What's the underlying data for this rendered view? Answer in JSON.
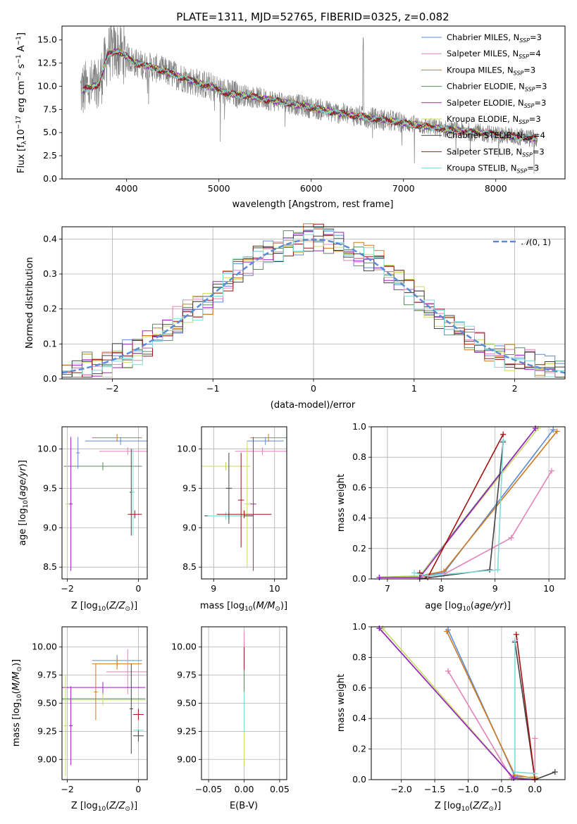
{
  "colors": {
    "Chabrier MILES": "#5b8bd8",
    "Salpeter MILES": "#e382b8",
    "Kroupa MILES": "#cf7a1e",
    "Chabrier ELODIE": "#5e8a5e",
    "Salpeter ELODIE": "#9b22c3",
    "Kroupa ELODIE": "#c6dd62",
    "Chabrier STELIB": "#444444",
    "Salpeter STELIB": "#a31212",
    "Kroupa STELIB": "#7fdad9",
    "data": "#808080",
    "normal": "#5b8bd8"
  },
  "chart_data": [
    {
      "id": "spectrum",
      "type": "line",
      "title": "PLATE=1311, MJD=52765, FIBERID=0325, z=0.082",
      "xlabel": "wavelength [Angstrom, rest frame]",
      "ylabel": "Flux [f",
      "xlim": [
        3300,
        8750
      ],
      "ylim": [
        0,
        16.5
      ],
      "xticks": [
        4000,
        5000,
        6000,
        7000,
        8000
      ],
      "yticks": [
        0.0,
        2.5,
        5.0,
        7.5,
        10.0,
        12.5,
        15.0
      ],
      "legend": "top-right",
      "grid": false,
      "series": [
        {
          "name": "Chabrier MILES, N",
          "sub": "SSP",
          "tail": "=3"
        },
        {
          "name": "Salpeter MILES, N",
          "sub": "SSP",
          "tail": "=4"
        },
        {
          "name": "Kroupa MILES, N",
          "sub": "SSP",
          "tail": "=3"
        },
        {
          "name": "Chabrier ELODIE, N",
          "sub": "SSP",
          "tail": "=3"
        },
        {
          "name": "Salpeter ELODIE, N",
          "sub": "SSP",
          "tail": "=3"
        },
        {
          "name": "Kroupa ELODIE, N",
          "sub": "SSP",
          "tail": "=3"
        },
        {
          "name": "Chabrier STELIB, N",
          "sub": "SSP",
          "tail": "=4"
        },
        {
          "name": "Salpeter STELIB, N",
          "sub": "SSP",
          "tail": "=3"
        },
        {
          "name": "Kroupa STELIB, N",
          "sub": "SSP",
          "tail": "=3"
        }
      ],
      "continuum": [
        [
          3500,
          9.5
        ],
        [
          3700,
          10.2
        ],
        [
          3800,
          13.5
        ],
        [
          3900,
          13.8
        ],
        [
          4000,
          13.2
        ],
        [
          4100,
          12.5
        ],
        [
          4300,
          12.0
        ],
        [
          4500,
          11.3
        ],
        [
          4700,
          10.6
        ],
        [
          4900,
          10.0
        ],
        [
          5100,
          9.2
        ],
        [
          5300,
          9.0
        ],
        [
          5500,
          8.6
        ],
        [
          5700,
          8.3
        ],
        [
          5900,
          7.9
        ],
        [
          6100,
          7.5
        ],
        [
          6300,
          7.1
        ],
        [
          6500,
          6.8
        ],
        [
          6700,
          6.5
        ],
        [
          6900,
          6.2
        ],
        [
          7100,
          5.9
        ],
        [
          7300,
          5.6
        ],
        [
          7500,
          5.3
        ],
        [
          7700,
          5.1
        ],
        [
          7900,
          4.9
        ],
        [
          8100,
          4.7
        ],
        [
          8300,
          4.5
        ],
        [
          8450,
          4.3
        ]
      ]
    },
    {
      "id": "residuals",
      "type": "step",
      "xlabel": "(data-model)/error",
      "ylabel": "Normed distribution",
      "xlim": [
        -2.5,
        2.5
      ],
      "ylim": [
        0,
        0.435
      ],
      "xticks": [
        -2,
        -1,
        0,
        1,
        2
      ],
      "yticks": [
        0.0,
        0.1,
        0.2,
        0.3,
        0.4
      ],
      "grid": true,
      "legend": "top-right",
      "normal_label": "(0, 1)"
    },
    {
      "id": "z-age",
      "type": "errorbar",
      "xlabel": "Z [log",
      "ylabel": "age  [log",
      "xlim": [
        -2.15,
        0.25
      ],
      "ylim": [
        8.35,
        10.28
      ],
      "xticks": [
        -2,
        0
      ],
      "yticks": [
        8.5,
        9.0,
        9.5,
        10.0
      ],
      "grid": true,
      "points": [
        {
          "s": "Chabrier MILES",
          "x": -0.5,
          "xe": 1.0,
          "y": 10.1,
          "ye": 0.05
        },
        {
          "s": "Kroupa MILES",
          "x": -0.6,
          "xe": 0.7,
          "y": 10.14,
          "ye": 0.05
        },
        {
          "s": "Salpeter MILES",
          "x": -0.3,
          "xe": 0.8,
          "y": 9.97,
          "ye": 0.05
        },
        {
          "s": "Kroupa ELODIE",
          "x": -1.0,
          "xe": 1.1,
          "y": 9.78,
          "ye": 0.05
        },
        {
          "s": "Chabrier ELODIE",
          "x": -1.0,
          "xe": 1.1,
          "y": 9.78,
          "ye": 0.05
        },
        {
          "s": "Salpeter ELODIE",
          "x": -1.9,
          "xe": 0.05,
          "y": 9.3,
          "ye": 0.85
        },
        {
          "s": "Kroupa ELODIE",
          "x": -2.0,
          "xe": 0.05,
          "y": 9.3,
          "ye": 0.8
        },
        {
          "s": "Chabrier STELIB",
          "x": -0.2,
          "xe": 0.05,
          "y": 9.45,
          "ye": 0.55
        },
        {
          "s": "Kroupa STELIB",
          "x": -0.15,
          "xe": 0.05,
          "y": 9.45,
          "ye": 0.55
        },
        {
          "s": "Salpeter STELIB",
          "x": -0.1,
          "xe": 0.2,
          "y": 9.17,
          "ye": 0.05
        },
        {
          "s": "Chabrier MILES",
          "x": -1.7,
          "xe": 0.05,
          "y": 9.95,
          "ye": 0.2
        }
      ]
    },
    {
      "id": "mass-age",
      "type": "errorbar",
      "xlabel": "mass [log",
      "ylabel": "",
      "xlim": [
        8.8,
        10.2
      ],
      "ylim": [
        8.35,
        10.28
      ],
      "xticks": [
        9,
        10
      ],
      "yticks": [
        8.5,
        9.0,
        9.5,
        10.0
      ],
      "grid": true,
      "points": [
        {
          "s": "Chabrier MILES",
          "x": 9.85,
          "xe": 0.3,
          "y": 10.1,
          "ye": 0.05
        },
        {
          "s": "Kroupa MILES",
          "x": 9.9,
          "xe": 0.3,
          "y": 10.14,
          "ye": 0.05
        },
        {
          "s": "Salpeter MILES",
          "x": 9.8,
          "xe": 0.45,
          "y": 9.97,
          "ye": 0.05
        },
        {
          "s": "Chabrier ELODIE",
          "x": 9.2,
          "xe": 0.4,
          "y": 9.78,
          "ye": 0.05
        },
        {
          "s": "Kroupa ELODIE",
          "x": 9.2,
          "xe": 0.4,
          "y": 9.78,
          "ye": 0.05
        },
        {
          "s": "Salpeter ELODIE",
          "x": 9.65,
          "xe": 0.05,
          "y": 9.3,
          "ye": 0.85
        },
        {
          "s": "Kroupa ELODIE",
          "x": 9.55,
          "xe": 0.05,
          "y": 9.3,
          "ye": 0.8
        },
        {
          "s": "Chabrier STELIB",
          "x": 9.25,
          "xe": 0.4,
          "y": 9.15,
          "ye": 0.05
        },
        {
          "s": "Kroupa STELIB",
          "x": 9.2,
          "xe": 0.3,
          "y": 9.15,
          "ye": 0.05
        },
        {
          "s": "Salpeter STELIB",
          "x": 9.5,
          "xe": 0.45,
          "y": 9.17,
          "ye": 0.05
        },
        {
          "s": "Chabrier STELIB",
          "x": 9.25,
          "xe": 0.05,
          "y": 9.5,
          "ye": 0.45
        },
        {
          "s": "Salpeter STELIB",
          "x": 9.45,
          "xe": 0.05,
          "y": 9.35,
          "ye": 0.6
        }
      ]
    },
    {
      "id": "age-weight",
      "type": "line",
      "xlabel": "age  [log",
      "ylabel": "mass weight",
      "xlim": [
        6.7,
        10.3
      ],
      "ylim": [
        0,
        1.0
      ],
      "xticks": [
        7,
        8,
        9,
        10
      ],
      "yticks": [
        0.0,
        0.2,
        0.4,
        0.6,
        0.8,
        1.0
      ],
      "grid": true,
      "series": [
        {
          "s": "Chabrier MILES",
          "x": [
            7.6,
            8.05,
            10.08
          ],
          "y": [
            0.02,
            0.04,
            0.98
          ]
        },
        {
          "s": "Kroupa MILES",
          "x": [
            7.6,
            8.05,
            10.15
          ],
          "y": [
            0.02,
            0.05,
            0.97
          ]
        },
        {
          "s": "Salpeter MILES",
          "x": [
            7.6,
            8.05,
            9.3,
            10.05
          ],
          "y": [
            0.01,
            0.03,
            0.27,
            0.71
          ]
        },
        {
          "s": "Chabrier ELODIE",
          "x": [
            6.85,
            7.6,
            9.75
          ],
          "y": [
            0.01,
            0.02,
            0.99
          ]
        },
        {
          "s": "Kroupa ELODIE",
          "x": [
            6.85,
            7.6,
            9.8
          ],
          "y": [
            0.01,
            0.02,
            0.99
          ]
        },
        {
          "s": "Salpeter ELODIE",
          "x": [
            6.85,
            7.6,
            9.75
          ],
          "y": [
            0.01,
            0.01,
            0.99
          ]
        },
        {
          "s": "Chabrier STELIB",
          "x": [
            7.6,
            8.9,
            9.15
          ],
          "y": [
            0.0,
            0.06,
            0.9
          ]
        },
        {
          "s": "Salpeter STELIB",
          "x": [
            7.6,
            7.75,
            9.15
          ],
          "y": [
            0.04,
            0.01,
            0.95
          ]
        },
        {
          "s": "Kroupa STELIB",
          "x": [
            7.5,
            7.75,
            9.05,
            9.15
          ],
          "y": [
            0.04,
            0.02,
            0.06,
            0.91
          ]
        }
      ]
    },
    {
      "id": "z-mass",
      "type": "errorbar",
      "xlabel": "Z [log",
      "ylabel": "mass [log",
      "xlim": [
        -2.15,
        0.25
      ],
      "ylim": [
        8.82,
        10.18
      ],
      "xticks": [
        -2,
        0
      ],
      "yticks": [
        9.0,
        9.25,
        9.5,
        9.75,
        10.0
      ],
      "grid": true,
      "points": [
        {
          "s": "Chabrier MILES",
          "x": -0.6,
          "xe": 0.7,
          "y": 9.88,
          "ye": 0.05
        },
        {
          "s": "Kroupa MILES",
          "x": -0.6,
          "xe": 0.7,
          "y": 9.85,
          "ye": 0.05
        },
        {
          "s": "Salpeter MILES",
          "x": -0.3,
          "xe": 0.6,
          "y": 9.78,
          "ye": 0.2
        },
        {
          "s": "Salpeter ELODIE",
          "x": -1.0,
          "xe": 1.2,
          "y": 9.64,
          "ye": 0.05
        },
        {
          "s": "Chabrier ELODIE",
          "x": -1.0,
          "xe": 1.2,
          "y": 9.54,
          "ye": 0.05
        },
        {
          "s": "Kroupa ELODIE",
          "x": -1.0,
          "xe": 1.2,
          "y": 9.53,
          "ye": 0.05
        },
        {
          "s": "Salpeter ELODIE",
          "x": -1.9,
          "xe": 0.05,
          "y": 9.3,
          "ye": 0.35
        },
        {
          "s": "Kroupa ELODIE",
          "x": -2.05,
          "xe": 0.05,
          "y": 9.3,
          "ye": 0.45
        },
        {
          "s": "Salpeter STELIB",
          "x": 0.0,
          "xe": 0.15,
          "y": 9.4,
          "ye": 0.05
        },
        {
          "s": "Kroupa STELIB",
          "x": 0.0,
          "xe": 0.15,
          "y": 9.26,
          "ye": 0.05
        },
        {
          "s": "Chabrier STELIB",
          "x": 0.0,
          "xe": 0.15,
          "y": 9.21,
          "ye": 0.05
        },
        {
          "s": "Chabrier STELIB",
          "x": -0.2,
          "xe": 0.05,
          "y": 9.45,
          "ye": 0.4
        },
        {
          "s": "Kroupa MILES",
          "x": -1.2,
          "xe": 0.05,
          "y": 9.6,
          "ye": 0.25
        }
      ]
    },
    {
      "id": "ebv-mass",
      "type": "errorbar",
      "xlabel": "E(B-V)",
      "ylabel": "",
      "xlim": [
        -0.06,
        0.06
      ],
      "ylim": [
        8.82,
        10.18
      ],
      "xticks": [
        -0.05,
        0.0,
        0.05
      ],
      "xticklabels": [
        "−0.05",
        "0.00",
        "0.05"
      ],
      "yticks": [
        9.0,
        9.25,
        9.5,
        9.75,
        10.0
      ],
      "grid": true,
      "points": [
        {
          "s": "Salpeter MILES",
          "x": 0.0,
          "xe": 0.0,
          "y": 9.95,
          "ye": 0.18
        },
        {
          "s": "Salpeter STELIB",
          "x": 0.0,
          "xe": 0.0,
          "y": 9.9,
          "ye": 0.1
        },
        {
          "s": "Chabrier ELODIE",
          "x": 0.0,
          "xe": 0.0,
          "y": 9.4,
          "ye": 0.4
        },
        {
          "s": "Kroupa STELIB",
          "x": 0.0,
          "xe": 0.0,
          "y": 9.3,
          "ye": 0.3
        },
        {
          "s": "Kroupa ELODIE",
          "x": 0.0,
          "xe": 0.0,
          "y": 9.1,
          "ye": 0.15
        }
      ]
    },
    {
      "id": "z-weight",
      "type": "line",
      "xlabel": "Z [log",
      "ylabel": "mass weight",
      "xlim": [
        -2.45,
        0.45
      ],
      "ylim": [
        0,
        1.0
      ],
      "xticks": [
        -2.0,
        -1.5,
        -1.0,
        -0.5,
        0.0
      ],
      "xticklabels": [
        "−2.0",
        "−1.5",
        "−1.0",
        "−0.5",
        "0.0"
      ],
      "yticks": [
        0.0,
        0.2,
        0.4,
        0.6,
        0.8,
        1.0
      ],
      "grid": true,
      "series": [
        {
          "s": "Chabrier MILES",
          "x": [
            -1.3,
            -0.3,
            0.0
          ],
          "y": [
            0.98,
            0.02,
            0.01
          ]
        },
        {
          "s": "Kroupa MILES",
          "x": [
            -1.32,
            -0.3,
            0.0
          ],
          "y": [
            0.97,
            0.03,
            0.01
          ]
        },
        {
          "s": "Salpeter MILES",
          "x": [
            -1.3,
            -0.35,
            0.0,
            0.0
          ],
          "y": [
            0.71,
            0.01,
            0.0,
            0.27
          ]
        },
        {
          "s": "Chabrier ELODIE",
          "x": [
            -2.33,
            -0.32,
            0.0
          ],
          "y": [
            0.99,
            0.01,
            0.02
          ]
        },
        {
          "s": "Kroupa ELODIE",
          "x": [
            -2.28,
            -0.32,
            0.0
          ],
          "y": [
            0.99,
            0.01,
            0.02
          ]
        },
        {
          "s": "Salpeter ELODIE",
          "x": [
            -2.33,
            -0.32,
            0.0
          ],
          "y": [
            0.99,
            0.01,
            0.0
          ]
        },
        {
          "s": "Chabrier STELIB",
          "x": [
            -0.3,
            0.0,
            0.3
          ],
          "y": [
            0.9,
            0.0,
            0.05
          ]
        },
        {
          "s": "Salpeter STELIB",
          "x": [
            -0.28,
            0.0
          ],
          "y": [
            0.95,
            0.0
          ]
        },
        {
          "s": "Kroupa STELIB",
          "x": [
            -0.3,
            -0.3,
            0.0
          ],
          "y": [
            0.91,
            0.05,
            0.04
          ]
        }
      ]
    }
  ]
}
